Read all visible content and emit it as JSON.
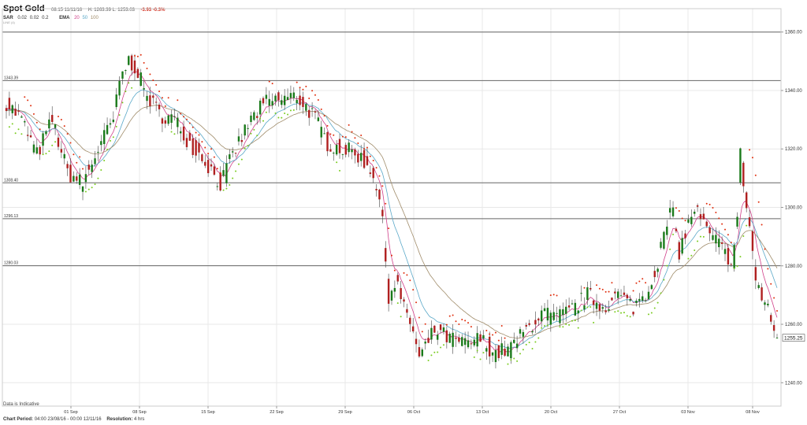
{
  "header": {
    "title": "Spot Gold",
    "timestamp": "08:15 11/11/16",
    "ohlc": "H: 1263.39 L: 1253.03",
    "change": "-3.93 -0.3%",
    "sar_label": "SAR",
    "sar_params": [
      "0.02",
      "0.02",
      "0.2"
    ],
    "ema_label": "EMA",
    "ema_params": [
      "20",
      "50",
      "100"
    ],
    "sub_label": "LINE (4)"
  },
  "footer": {
    "period_label": "Chart Period:",
    "period_value": "04:00 23/08/16 - 00:00 12/11/16",
    "resolution_label": "Resolution:",
    "resolution_value": "4 hrs",
    "disclaimer": "Data is Indicative"
  },
  "colors": {
    "up": "#1a7a1a",
    "down": "#b02020",
    "sar_up": "#7acc20",
    "sar_down": "#e03010",
    "ema20": "#d0408a",
    "ema50": "#5aa8c8",
    "ema100": "#a08c6a",
    "grid": "#e8e8e8",
    "hline": "#666666"
  },
  "chart_data": {
    "type": "candlestick",
    "title": "Spot Gold",
    "ylim": [
      1232,
      1368
    ],
    "y_ticks": [
      "1360.00",
      "1340.00",
      "1320.00",
      "1300.00",
      "1280.00",
      "1260.00",
      "1240.00"
    ],
    "x_ticks": [
      "01 Sep",
      "08 Sep",
      "15 Sep",
      "22 Sep",
      "29 Sep",
      "06 Oct",
      "13 Oct",
      "20 Oct",
      "27 Oct",
      "03 Nov",
      "08 Nov"
    ],
    "horizontal_lines": [
      {
        "value": 1360.0,
        "label": ""
      },
      {
        "value": 1343.39,
        "label": "1343.39"
      },
      {
        "value": 1308.4,
        "label": "1308.40"
      },
      {
        "value": 1296.13,
        "label": "1296.13"
      },
      {
        "value": 1280.03,
        "label": "1280.03"
      }
    ],
    "last_price": "1255.25",
    "path": [
      [
        0,
        1336
      ],
      [
        10,
        1330
      ],
      [
        20,
        1318
      ],
      [
        30,
        1330
      ],
      [
        40,
        1312
      ],
      [
        50,
        1308
      ],
      [
        60,
        1320
      ],
      [
        70,
        1330
      ],
      [
        75,
        1345
      ],
      [
        80,
        1350
      ],
      [
        85,
        1348
      ],
      [
        90,
        1340
      ],
      [
        100,
        1332
      ],
      [
        110,
        1330
      ],
      [
        120,
        1322
      ],
      [
        130,
        1316
      ],
      [
        140,
        1308
      ],
      [
        150,
        1320
      ],
      [
        160,
        1330
      ],
      [
        170,
        1336
      ],
      [
        180,
        1337
      ],
      [
        190,
        1338
      ],
      [
        200,
        1332
      ],
      [
        210,
        1322
      ],
      [
        220,
        1320
      ],
      [
        230,
        1318
      ],
      [
        240,
        1312
      ],
      [
        245,
        1300
      ],
      [
        250,
        1270
      ],
      [
        255,
        1275
      ],
      [
        260,
        1265
      ],
      [
        265,
        1260
      ],
      [
        270,
        1248
      ],
      [
        280,
        1258
      ],
      [
        290,
        1255
      ],
      [
        300,
        1253
      ],
      [
        310,
        1255
      ],
      [
        320,
        1250
      ],
      [
        330,
        1252
      ],
      [
        340,
        1258
      ],
      [
        350,
        1264
      ],
      [
        360,
        1262
      ],
      [
        370,
        1265
      ],
      [
        380,
        1270
      ],
      [
        390,
        1266
      ],
      [
        400,
        1270
      ],
      [
        410,
        1266
      ],
      [
        420,
        1272
      ],
      [
        425,
        1280
      ],
      [
        430,
        1290
      ],
      [
        435,
        1300
      ],
      [
        440,
        1285
      ],
      [
        450,
        1300
      ],
      [
        460,
        1290
      ],
      [
        465,
        1288
      ],
      [
        470,
        1284
      ],
      [
        475,
        1282
      ],
      [
        478,
        1296
      ],
      [
        480,
        1318
      ],
      [
        484,
        1300
      ],
      [
        487,
        1290
      ],
      [
        490,
        1275
      ],
      [
        495,
        1268
      ],
      [
        500,
        1262
      ],
      [
        503,
        1255
      ]
    ]
  }
}
